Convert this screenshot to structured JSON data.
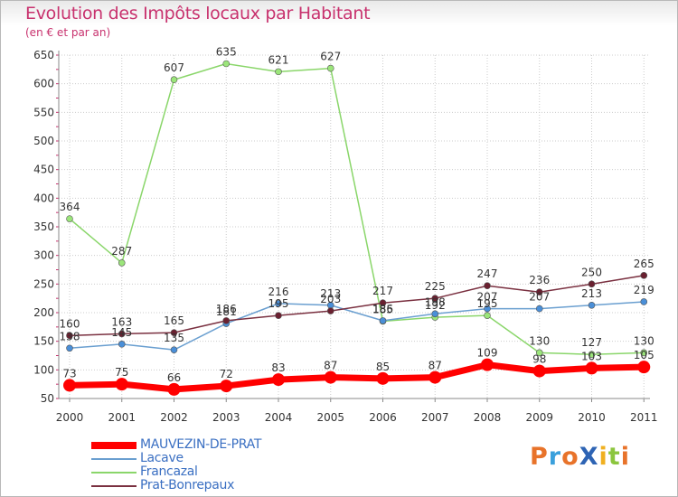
{
  "title": "Evolution des Impôts locaux par Habitant",
  "subtitle": "(en € et par an)",
  "logo": {
    "text": "ProXiti",
    "colors": [
      "#e8732a",
      "#3aa0dc",
      "#e8732a",
      "#2e64b4",
      "#f0b020",
      "#8cc63e",
      "#e8732a"
    ]
  },
  "chart_data": {
    "type": "line",
    "title": "Evolution des Impôts locaux par Habitant",
    "subtitle": "(en € et par an)",
    "xlabel": "",
    "ylabel": "",
    "x": [
      "2000",
      "2001",
      "2002",
      "2003",
      "2004",
      "2005",
      "2006",
      "2007",
      "2008",
      "2009",
      "2010",
      "2011"
    ],
    "ylim": [
      50,
      650
    ],
    "yticks": [
      50,
      100,
      150,
      200,
      250,
      300,
      350,
      400,
      450,
      500,
      550,
      600,
      650
    ],
    "grid": true,
    "legend": "bottom-left",
    "series": [
      {
        "name": "Francazal",
        "color": "#8ad66a",
        "markerFill": "#9be57a",
        "width": 1.5,
        "markerR": 3.5,
        "values": [
          364,
          287,
          607,
          635,
          621,
          627,
          185,
          192,
          195,
          130,
          127,
          130
        ],
        "labels": [
          "364",
          "287",
          "607",
          "635",
          "621",
          "627",
          "185",
          "192",
          "195",
          "130",
          "127",
          "130"
        ]
      },
      {
        "name": "Lacave",
        "color": "#6a9fd0",
        "markerFill": "#4a8fd8",
        "width": 1.5,
        "markerR": 3.5,
        "values": [
          138,
          145,
          135,
          181,
          216,
          213,
          186,
          198,
          207,
          207,
          213,
          219
        ],
        "labels": [
          "138",
          "145",
          "135",
          "181",
          "216",
          "213",
          "186",
          "198",
          "207",
          "207",
          "213",
          "219"
        ]
      },
      {
        "name": "Prat-Bonrepaux",
        "color": "#7a3040",
        "markerFill": "#6a2030",
        "width": 1.5,
        "markerR": 3.5,
        "values": [
          160,
          163,
          165,
          186,
          195,
          203,
          217,
          225,
          247,
          236,
          250,
          265
        ],
        "labels": [
          "160",
          "163",
          "165",
          "186",
          "195",
          "203",
          "217",
          "225",
          "247",
          "236",
          "250",
          "265"
        ]
      },
      {
        "name": "MAUVEZIN-DE-PRAT",
        "color": "#ff0000",
        "markerFill": "#ff0000",
        "width": 7,
        "markerR": 7,
        "values": [
          73,
          75,
          66,
          72,
          83,
          87,
          85,
          87,
          109,
          98,
          103,
          105
        ],
        "labels": [
          "73",
          "75",
          "66",
          "72",
          "83",
          "87",
          "85",
          "87",
          "109",
          "98",
          "103",
          "105"
        ]
      }
    ]
  },
  "legend": [
    {
      "name": "MAUVEZIN-DE-PRAT",
      "color": "#ff0000",
      "thickness": 8
    },
    {
      "name": "Lacave",
      "color": "#6a9fd0",
      "thickness": 2
    },
    {
      "name": "Francazal",
      "color": "#8ad66a",
      "thickness": 2
    },
    {
      "name": "Prat-Bonrepaux",
      "color": "#7a3040",
      "thickness": 2
    }
  ]
}
